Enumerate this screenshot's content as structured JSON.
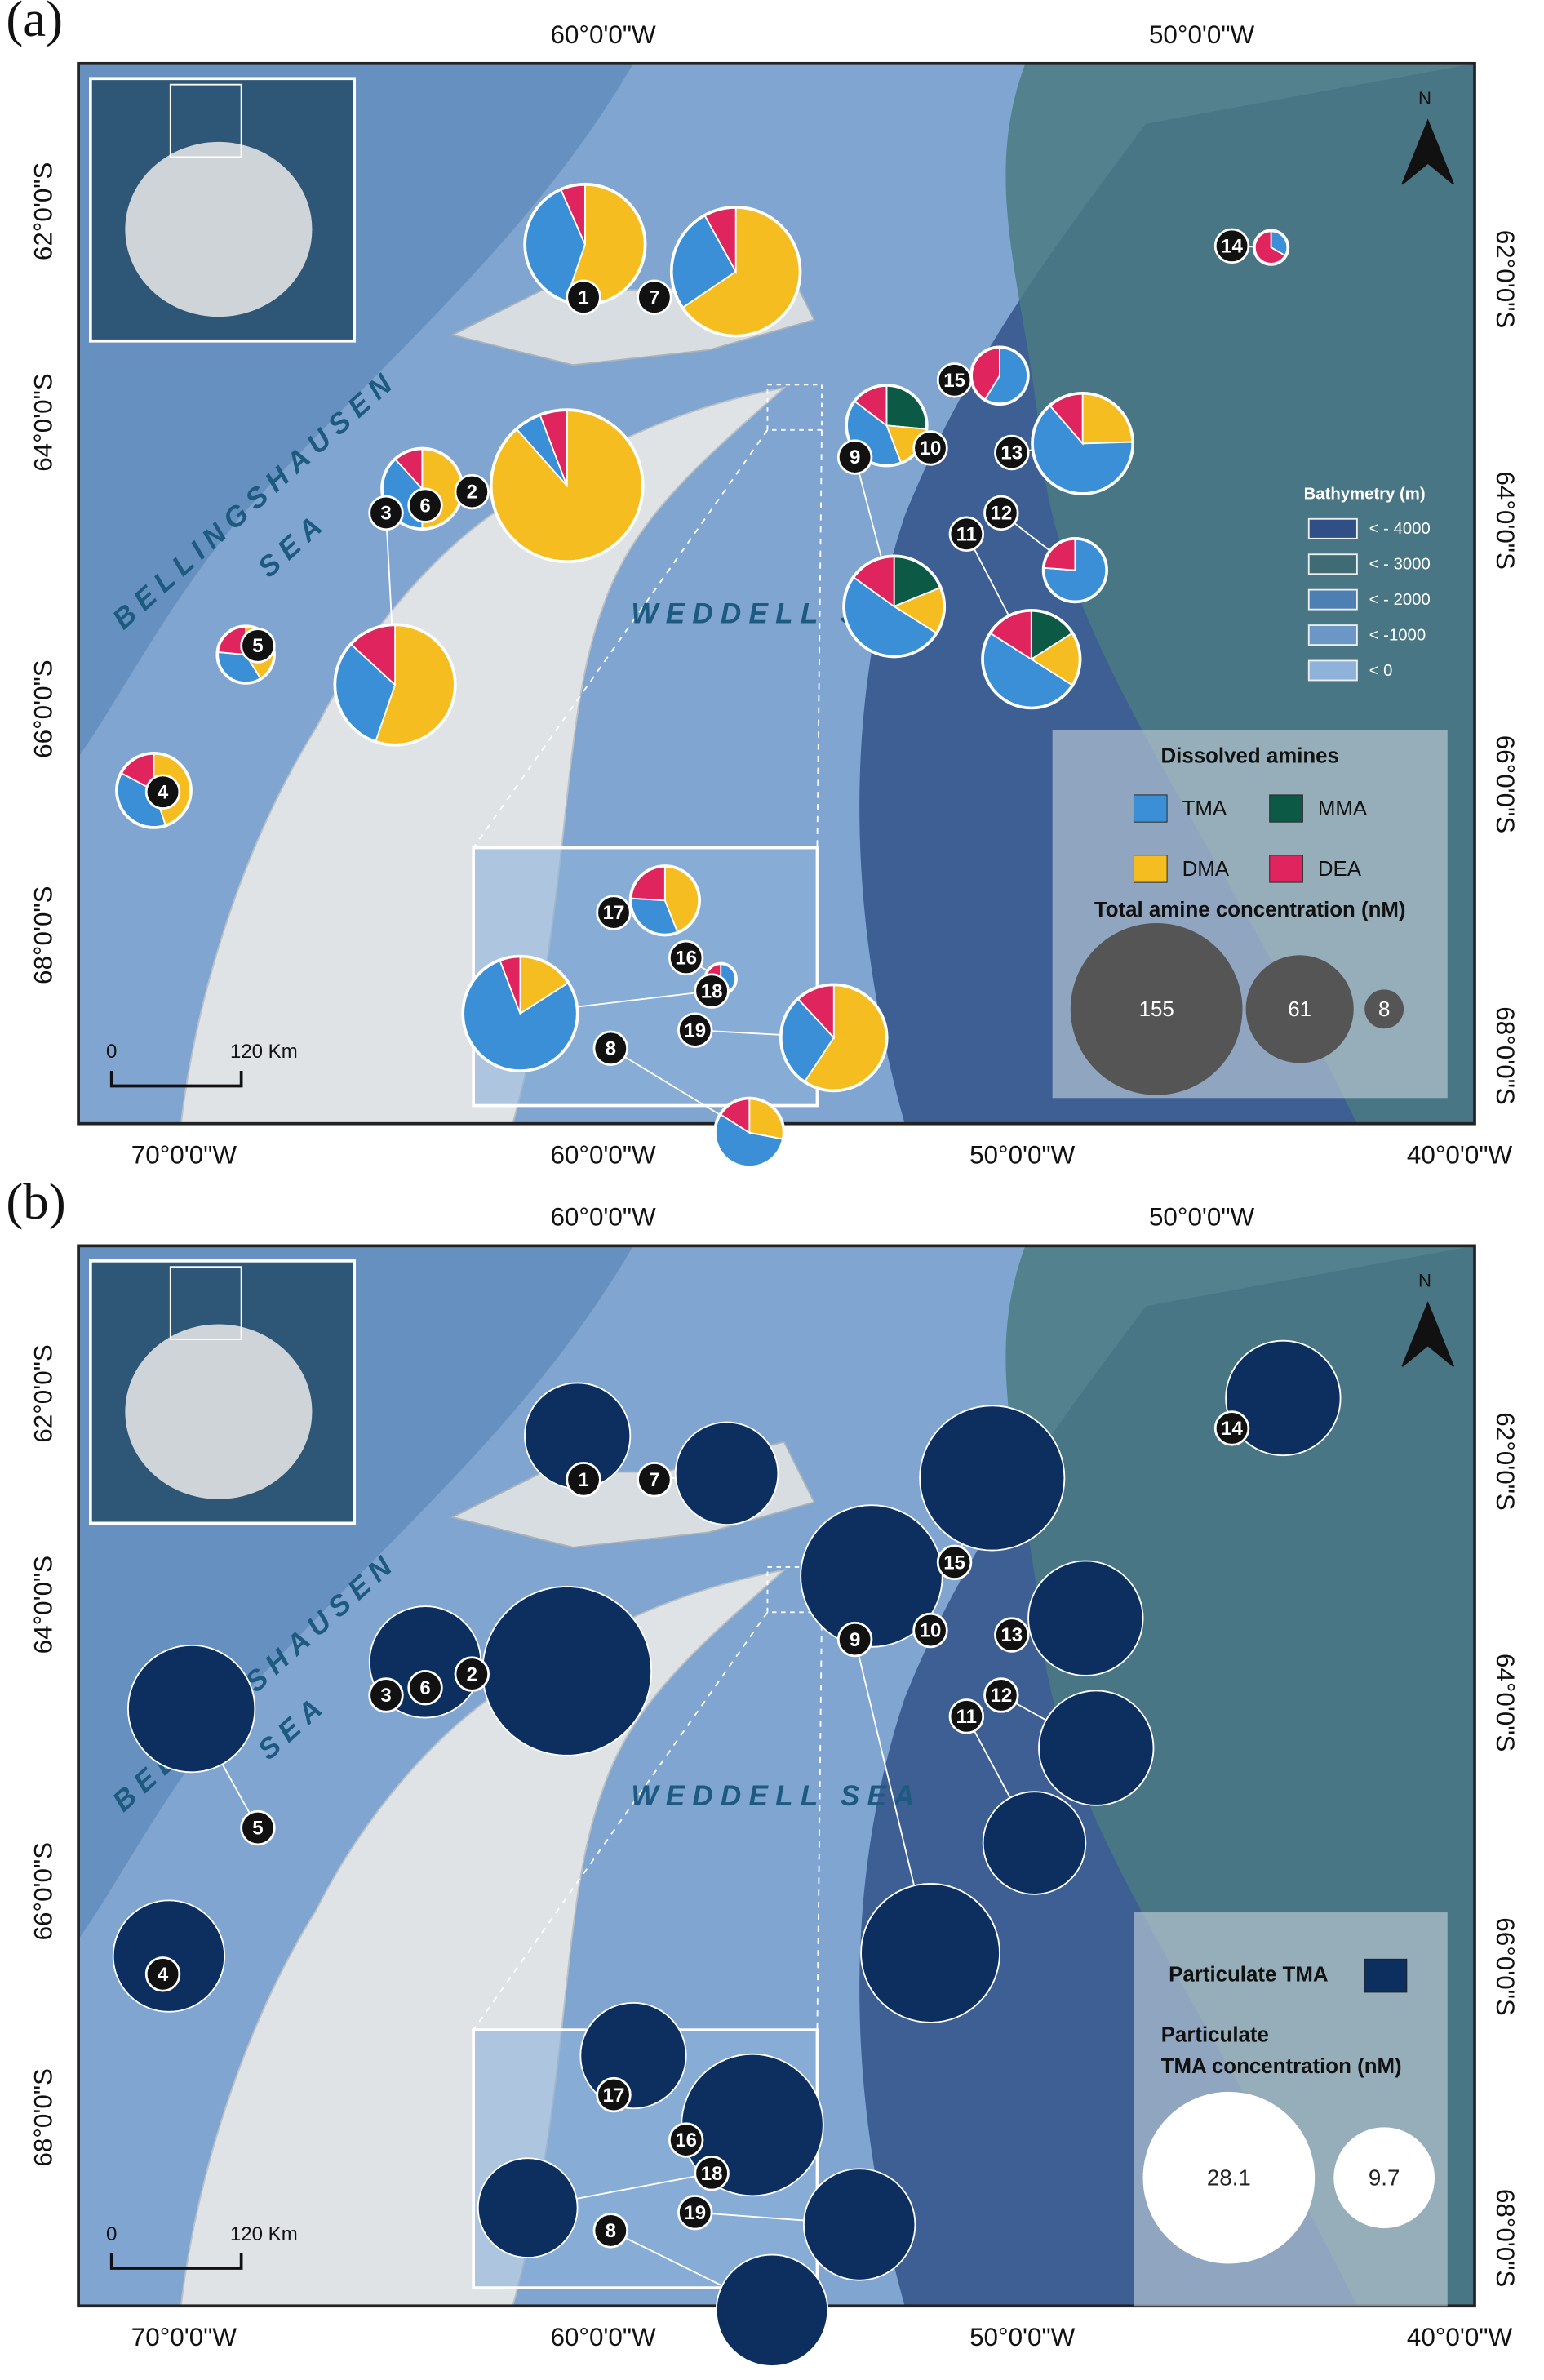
{
  "panels": [
    {
      "label": "(a)",
      "top_axis_labels": [
        "60°0'0\"W",
        "50°0'0\"W"
      ],
      "bottom_axis_labels": [
        "70°0'0\"W",
        "60°0'0\"W",
        "50°0'0\"W",
        "40°0'0\"W"
      ],
      "left_axis_labels": [
        "62°0'0\"S",
        "64°0'0\"S",
        "66°0'0\"S",
        "68°0'0\"S"
      ],
      "right_axis_labels": [
        "62°0'0\"S",
        "64°0'0\"S",
        "66°0'0\"S",
        "68°0'0\"S"
      ],
      "sea_labels": [
        "BELLINGSHAUSEN",
        "SEA",
        "WEDDELL SEA"
      ],
      "scale_bar": [
        "0",
        "120 Km"
      ],
      "north": "N",
      "stations": [
        {
          "id": "1",
          "values": [
            29,
            42,
            0,
            5
          ]
        },
        {
          "id": "7",
          "values": [
            23,
            57,
            0,
            7
          ]
        },
        {
          "id": "2",
          "values": [
            7,
            107,
            0,
            7
          ]
        },
        {
          "id": "6",
          "values": [
            13,
            17,
            0,
            4
          ]
        },
        {
          "id": "3",
          "values": [
            24,
            42,
            0,
            10
          ]
        },
        {
          "id": "5",
          "values": [
            6,
            7,
            0,
            4
          ]
        },
        {
          "id": "4",
          "values": [
            11,
            13,
            0,
            5
          ]
        },
        {
          "id": "14",
          "values": [
            2,
            0,
            0,
            4
          ]
        },
        {
          "id": "15",
          "values": [
            10,
            0,
            0,
            7
          ]
        },
        {
          "id": "10",
          "values": [
            14,
            6,
            9,
            5
          ]
        },
        {
          "id": "13",
          "values": [
            34,
            13,
            0,
            6
          ]
        },
        {
          "id": "9",
          "values": [
            27,
            8,
            10,
            8
          ]
        },
        {
          "id": "12",
          "values": [
            16,
            0,
            0,
            5
          ]
        },
        {
          "id": "11",
          "values": [
            25,
            9,
            8,
            8
          ]
        },
        {
          "id": "17",
          "values": [
            8,
            11,
            0,
            6
          ]
        },
        {
          "id": "16",
          "values": [
            2,
            0,
            0,
            3
          ]
        },
        {
          "id": "18",
          "values": [
            54,
            11,
            0,
            4
          ]
        },
        {
          "id": "19",
          "values": [
            17,
            35,
            0,
            7
          ]
        },
        {
          "id": "8",
          "values": [
            14,
            7,
            0,
            4
          ]
        }
      ],
      "bathymetry": {
        "title": "Bathymetry (m)",
        "classes": [
          "< - 4000",
          "< - 3000",
          "< - 2000",
          "< -1000",
          "< 0"
        ],
        "colors": [
          "#2f4f86",
          "#3f6b74",
          "#4d7fb3",
          "#6b97c6",
          "#8fb2da"
        ]
      },
      "legend": {
        "title": "Dissolved amines",
        "series": [
          {
            "name": "TMA",
            "color": "#3a8fd6"
          },
          {
            "name": "DMA",
            "color": "#f5bd1f"
          },
          {
            "name": "MMA",
            "color": "#0c5a45"
          },
          {
            "name": "DEA",
            "color": "#e0245e"
          }
        ],
        "size_title": "Total amine concentration (nM)",
        "sizes": [
          155,
          61,
          8
        ]
      }
    },
    {
      "label": "(b)",
      "top_axis_labels": [
        "60°0'0\"W",
        "50°0'0\"W"
      ],
      "bottom_axis_labels": [
        "70°0'0\"W",
        "60°0'0\"W",
        "50°0'0\"W",
        "40°0'0\"W"
      ],
      "left_axis_labels": [
        "62°0'0\"S",
        "64°0'0\"S",
        "66°0'0\"S",
        "68°0'0\"S"
      ],
      "right_axis_labels": [
        "62°0'0\"S",
        "64°0'0\"S",
        "66°0'0\"S",
        "68°0'0\"S"
      ],
      "sea_labels": [
        "BELLINGSHAUSEN",
        "SEA",
        "WEDDELL SEA"
      ],
      "scale_bar": [
        "0",
        "120 Km"
      ],
      "north": "N",
      "stations": [
        {
          "id": "1",
          "value": 10.6
        },
        {
          "id": "7",
          "value": 10.0
        },
        {
          "id": "2",
          "value": 27.1
        },
        {
          "id": "6",
          "value": 11.8
        },
        {
          "id": "3",
          "value": null
        },
        {
          "id": "5",
          "value": 15.3
        },
        {
          "id": "4",
          "value": 11.8
        },
        {
          "id": "14",
          "value": 12.5
        },
        {
          "id": "15",
          "value": 19.9
        },
        {
          "id": "10",
          "value": 19.1
        },
        {
          "id": "13",
          "value": 12.5
        },
        {
          "id": "9",
          "value": 18.3
        },
        {
          "id": "12",
          "value": 12.5
        },
        {
          "id": "11",
          "value": 10.0
        },
        {
          "id": "17",
          "value": 10.6
        },
        {
          "id": "16",
          "value": 19.1
        },
        {
          "id": "18",
          "value": 9.4
        },
        {
          "id": "19",
          "value": 11.8
        },
        {
          "id": "8",
          "value": 11.8
        }
      ],
      "legend": {
        "title": "Particulate TMA",
        "color": "#0c2f5f",
        "size_title": [
          "Particulate",
          "TMA concentration (nM)"
        ],
        "sizes": [
          28.1,
          9.7
        ]
      }
    }
  ]
}
